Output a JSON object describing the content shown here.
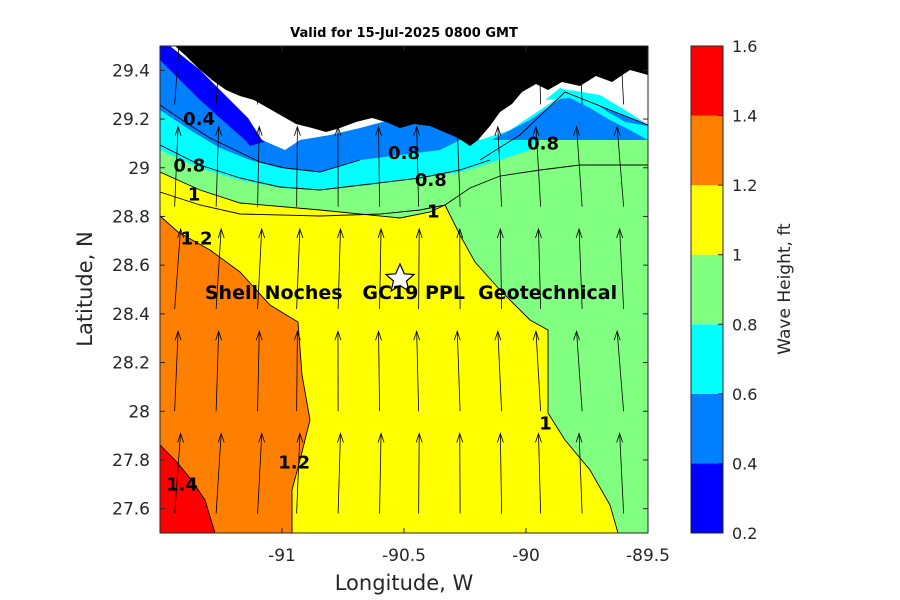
{
  "chart_data": {
    "type": "contour",
    "title": "Valid for 15-Jul-2025 0800 GMT",
    "xlabel": "Longitude, W",
    "ylabel": "Latitude, N",
    "xlim": [
      -91.5,
      -89.5
    ],
    "ylim": [
      27.5,
      29.5
    ],
    "xticks": [
      -91,
      -90.5,
      -90,
      -89.5
    ],
    "xtick_labels": [
      "-91",
      "-90.5",
      "-90",
      "-89.5"
    ],
    "yticks": [
      27.6,
      27.8,
      28,
      28.2,
      28.4,
      28.6,
      28.8,
      29,
      29.2,
      29.4
    ],
    "ytick_labels": [
      "27.6",
      "27.8",
      "28",
      "28.2",
      "28.4",
      "28.6",
      "28.8",
      "29",
      "29.2",
      "29.4"
    ],
    "colorbar": {
      "label": "Wave Height, ft",
      "levels": [
        0.2,
        0.4,
        0.6,
        0.8,
        1.0,
        1.2,
        1.4,
        1.6
      ],
      "tick_labels": [
        "0.2",
        "0.4",
        "0.6",
        "0.8",
        "1",
        "1.2",
        "1.4",
        "1.6"
      ],
      "colors": [
        "#0000ff",
        "#0080ff",
        "#00ffff",
        "#80ff80",
        "#ffff00",
        "#ff8000",
        "#ff0000"
      ]
    },
    "land_color": "#000000",
    "contour_labels": [
      {
        "text": "0.4",
        "lon": -91.34,
        "lat": 29.2
      },
      {
        "text": "0.8",
        "lon": -91.38,
        "lat": 29.01
      },
      {
        "text": "1",
        "lon": -91.36,
        "lat": 28.89
      },
      {
        "text": "1.2",
        "lon": -91.35,
        "lat": 28.71
      },
      {
        "text": "0.8",
        "lon": -90.5,
        "lat": 29.06
      },
      {
        "text": "0.8",
        "lon": -90.39,
        "lat": 28.95
      },
      {
        "text": "1",
        "lon": -90.38,
        "lat": 28.82
      },
      {
        "text": "0.8",
        "lon": -89.93,
        "lat": 29.1
      },
      {
        "text": "1",
        "lon": -89.92,
        "lat": 27.95
      },
      {
        "text": "1.2",
        "lon": -90.95,
        "lat": 27.79
      },
      {
        "text": "1.4",
        "lon": -91.41,
        "lat": 27.7
      }
    ],
    "site": {
      "label": "Shell Noches   GC19 PPL  Geotechnical",
      "marker": "star",
      "lon": -90.5,
      "lat": 28.55
    },
    "wave_direction": "arrows pointing north (toward shore)"
  }
}
